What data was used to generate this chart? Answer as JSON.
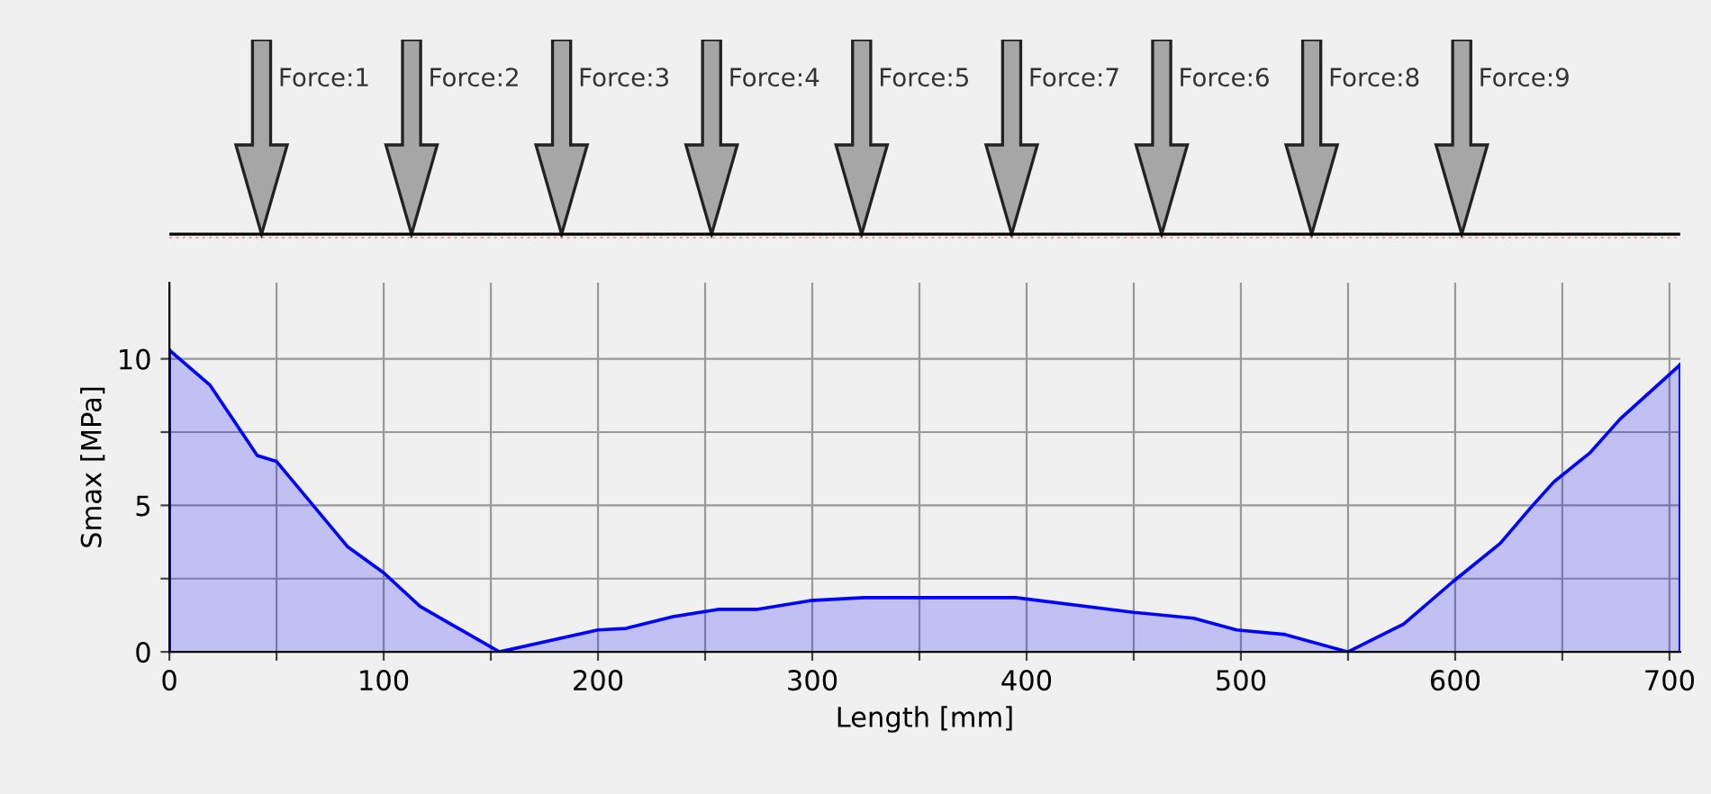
{
  "chart_data": {
    "type": "area",
    "xlabel": "Length [mm]",
    "ylabel": "Smax [MPa]",
    "series": [
      {
        "color": "#0000ff",
        "x": [
          0,
          19,
          41,
          50,
          83,
          100,
          117,
          154,
          200,
          213,
          235,
          256,
          274,
          299,
          324,
          395,
          450,
          478,
          498,
          520,
          550,
          576,
          599,
          621,
          635,
          646,
          663,
          677,
          705
        ],
        "values": [
          10.3,
          9.1,
          6.7,
          6.5,
          3.6,
          2.7,
          1.55,
          0,
          0.75,
          0.8,
          1.2,
          1.45,
          1.45,
          1.75,
          1.85,
          1.85,
          1.35,
          1.15,
          0.75,
          0.6,
          0,
          0.95,
          2.4,
          3.7,
          4.9,
          5.8,
          6.8,
          7.95,
          9.8
        ]
      }
    ],
    "xlim": [
      0,
      705
    ],
    "ylim": [
      0,
      12.6
    ],
    "xticks": [
      0,
      {
        "value": 50,
        "label": null
      },
      100,
      {
        "value": 150,
        "label": null
      },
      200,
      {
        "value": 250,
        "label": null
      },
      300,
      {
        "value": 350,
        "label": null
      },
      400,
      {
        "value": 450,
        "label": null
      },
      500,
      {
        "value": 550,
        "label": null
      },
      600,
      {
        "value": 650,
        "label": null
      },
      700
    ],
    "yticks": [
      0,
      {
        "value": 2.5,
        "label": null
      },
      5,
      {
        "value": 7.5,
        "label": null
      },
      10
    ],
    "grid": true,
    "annotations": [
      "Force:1",
      "Force:2",
      "Force:3",
      "Force:4",
      "Force:5",
      "Force:7",
      "Force:6",
      "Force:8",
      "Force:9"
    ]
  }
}
